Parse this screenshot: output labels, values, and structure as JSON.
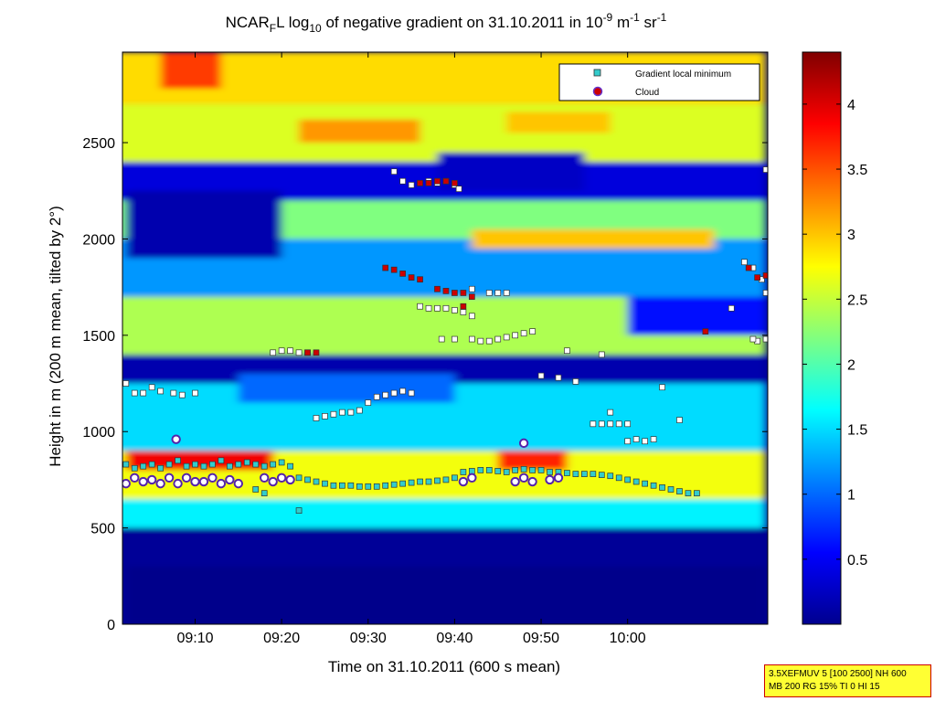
{
  "chart_data": {
    "type": "heatmap",
    "title_parts": {
      "a": "NCAR",
      "b": "F",
      "c": "L log",
      "d": "10",
      "e": " of negative gradient on 31.10.2011 in 10",
      "f": "-9",
      "g": " m",
      "h": "-1",
      "i": " sr",
      "j": "-1"
    },
    "xlabel": "Time on 31.10.2011 (600 s mean)",
    "ylabel": "Height in m (200 m mean, tilted by 2°)",
    "x_ticks": [
      "09:10",
      "09:20",
      "09:30",
      "09:40",
      "09:50",
      "10:00"
    ],
    "x_tick_minutes": [
      10,
      20,
      30,
      40,
      50,
      60
    ],
    "xlim_minutes": [
      1.6,
      76.2
    ],
    "xlim_label": [
      "09:01.6",
      "10:16.2"
    ],
    "y_ticks": [
      "0",
      "500",
      "1000",
      "1500",
      "2000",
      "2500"
    ],
    "y_tick_values": [
      0,
      500,
      1000,
      1500,
      2000,
      2500
    ],
    "ylim": [
      0,
      2970
    ],
    "colorbar": {
      "ticks": [
        "0.5",
        "1",
        "1.5",
        "2",
        "2.5",
        "3",
        "3.5",
        "4"
      ],
      "tick_values": [
        0.5,
        1,
        1.5,
        2,
        2.5,
        3,
        3.5,
        4
      ],
      "range": [
        0,
        4.4
      ],
      "colormap": "jet"
    },
    "legend": {
      "placement": "top-right",
      "entries": [
        {
          "label": "Gradient local minimum",
          "color": "#33cccc",
          "marker": "square"
        },
        {
          "label": "Cloud",
          "color": "#cc0000",
          "marker": "circle",
          "edge": "#5522aa"
        }
      ]
    },
    "field_bands": [
      {
        "min_from": 0,
        "min_to": 76,
        "h_from": 0,
        "h_to": 600,
        "level": 0.1
      },
      {
        "min_from": 0,
        "min_to": 76,
        "h_from": 500,
        "h_to": 650,
        "level": 1.6
      },
      {
        "min_from": 0,
        "min_to": 76,
        "h_from": 650,
        "h_to": 900,
        "level": 2.7
      },
      {
        "min_from": 0,
        "min_to": 76,
        "h_from": 900,
        "h_to": 1250,
        "level": 1.5
      },
      {
        "min_from": 0,
        "min_to": 76,
        "h_from": 1250,
        "h_to": 1400,
        "level": 0.2
      },
      {
        "min_from": 0,
        "min_to": 76,
        "h_from": 1400,
        "h_to": 1700,
        "level": 2.4
      },
      {
        "min_from": 0,
        "min_to": 76,
        "h_from": 1700,
        "h_to": 2000,
        "level": 1.2
      },
      {
        "min_from": 0,
        "min_to": 76,
        "h_from": 2000,
        "h_to": 2200,
        "level": 2.2
      },
      {
        "min_from": 0,
        "min_to": 76,
        "h_from": 2200,
        "h_to": 2400,
        "level": 0.4
      },
      {
        "min_from": 0,
        "min_to": 76,
        "h_from": 2400,
        "h_to": 2700,
        "level": 2.6
      },
      {
        "min_from": 0,
        "min_to": 76,
        "h_from": 2700,
        "h_to": 2970,
        "level": 2.9
      }
    ],
    "field_patches": [
      {
        "min_from": 6,
        "min_to": 13,
        "h_from": 2780,
        "h_to": 2970,
        "level": 3.6
      },
      {
        "min_from": 22,
        "min_to": 36,
        "h_from": 2500,
        "h_to": 2620,
        "level": 3.2
      },
      {
        "min_from": 46,
        "min_to": 58,
        "h_from": 2550,
        "h_to": 2660,
        "level": 3.0
      },
      {
        "min_from": 42,
        "min_to": 70,
        "h_from": 1950,
        "h_to": 2050,
        "level": 3.0
      },
      {
        "min_from": 15,
        "min_to": 40,
        "h_from": 1150,
        "h_to": 1300,
        "level": 1.0
      },
      {
        "min_from": 2,
        "min_to": 20,
        "h_from": 1900,
        "h_to": 2250,
        "level": 0.2
      },
      {
        "min_from": 38,
        "min_to": 55,
        "h_from": 2250,
        "h_to": 2450,
        "level": 0.3
      },
      {
        "min_from": 60,
        "min_to": 76,
        "h_from": 1500,
        "h_to": 1700,
        "level": 0.6
      },
      {
        "min_from": 2,
        "min_to": 19,
        "h_from": 800,
        "h_to": 900,
        "level": 3.9
      },
      {
        "min_from": 45,
        "min_to": 53,
        "h_from": 800,
        "h_to": 900,
        "level": 3.7
      },
      {
        "min_from": 2,
        "min_to": 76,
        "h_from": 0,
        "h_to": 300,
        "level": 0.05
      }
    ],
    "series": [
      {
        "name": "Gradient local minimum",
        "points": [
          [
            2,
            1250
          ],
          [
            3,
            1200
          ],
          [
            4,
            1200
          ],
          [
            5,
            1230
          ],
          [
            6,
            1210
          ],
          [
            7.5,
            1200
          ],
          [
            8.5,
            1190
          ],
          [
            10,
            1200
          ],
          [
            19,
            1410
          ],
          [
            20,
            1420
          ],
          [
            21,
            1420
          ],
          [
            22,
            1410
          ],
          [
            23,
            1410
          ],
          [
            24,
            1070
          ],
          [
            25,
            1080
          ],
          [
            26,
            1090
          ],
          [
            27,
            1100
          ],
          [
            28,
            1100
          ],
          [
            29,
            1110
          ],
          [
            30,
            1150
          ],
          [
            31,
            1180
          ],
          [
            32,
            1190
          ],
          [
            33,
            1200
          ],
          [
            34,
            1210
          ],
          [
            35,
            1200
          ],
          [
            33,
            2350
          ],
          [
            34,
            2300
          ],
          [
            35,
            2280
          ],
          [
            36,
            2290
          ],
          [
            37,
            2300
          ],
          [
            38,
            2290
          ],
          [
            39,
            2300
          ],
          [
            40,
            2280
          ],
          [
            40.5,
            2260
          ],
          [
            36,
            1650
          ],
          [
            37,
            1640
          ],
          [
            38,
            1640
          ],
          [
            39,
            1640
          ],
          [
            40,
            1630
          ],
          [
            41,
            1620
          ],
          [
            42,
            1600
          ],
          [
            38.5,
            1480
          ],
          [
            40,
            1480
          ],
          [
            42,
            1480
          ],
          [
            43,
            1470
          ],
          [
            44,
            1470
          ],
          [
            45,
            1480
          ],
          [
            46,
            1490
          ],
          [
            47,
            1500
          ],
          [
            48,
            1510
          ],
          [
            49,
            1520
          ],
          [
            42,
            1740
          ],
          [
            44,
            1720
          ],
          [
            45,
            1720
          ],
          [
            46,
            1720
          ],
          [
            50,
            1290
          ],
          [
            52,
            1280
          ],
          [
            53,
            1420
          ],
          [
            54,
            1260
          ],
          [
            57,
            1400
          ],
          [
            56,
            1040
          ],
          [
            57,
            1040
          ],
          [
            58,
            1040
          ],
          [
            59,
            1040
          ],
          [
            60,
            1040
          ],
          [
            58,
            1100
          ],
          [
            60,
            950
          ],
          [
            61,
            960
          ],
          [
            62,
            950
          ],
          [
            63,
            960
          ],
          [
            64,
            1230
          ],
          [
            66,
            1060
          ],
          [
            72,
            1640
          ],
          [
            73.5,
            1880
          ],
          [
            74.5,
            1850
          ],
          [
            75.5,
            1790
          ],
          [
            76,
            1720
          ],
          [
            76,
            1480
          ],
          [
            75,
            1470
          ],
          [
            74.5,
            1480
          ],
          [
            76,
            2360
          ],
          [
            2,
            830
          ],
          [
            3,
            810
          ],
          [
            4,
            820
          ],
          [
            5,
            830
          ],
          [
            6,
            810
          ],
          [
            7,
            830
          ],
          [
            8,
            850
          ],
          [
            9,
            820
          ],
          [
            10,
            830
          ],
          [
            11,
            820
          ],
          [
            12,
            830
          ],
          [
            13,
            850
          ],
          [
            14,
            820
          ],
          [
            15,
            830
          ],
          [
            16,
            840
          ],
          [
            17,
            830
          ],
          [
            18,
            820
          ],
          [
            19,
            830
          ],
          [
            20,
            840
          ],
          [
            21,
            820
          ],
          [
            22,
            760
          ],
          [
            23,
            750
          ],
          [
            24,
            740
          ],
          [
            25,
            730
          ],
          [
            26,
            720
          ],
          [
            27,
            720
          ],
          [
            28,
            720
          ],
          [
            29,
            715
          ],
          [
            30,
            715
          ],
          [
            31,
            715
          ],
          [
            32,
            720
          ],
          [
            33,
            725
          ],
          [
            34,
            730
          ],
          [
            35,
            735
          ],
          [
            36,
            740
          ],
          [
            37,
            740
          ],
          [
            38,
            745
          ],
          [
            39,
            750
          ],
          [
            40,
            760
          ],
          [
            41,
            790
          ],
          [
            42,
            795
          ],
          [
            43,
            800
          ],
          [
            44,
            800
          ],
          [
            45,
            795
          ],
          [
            46,
            790
          ],
          [
            47,
            800
          ],
          [
            48,
            805
          ],
          [
            49,
            800
          ],
          [
            50,
            800
          ],
          [
            51,
            790
          ],
          [
            52,
            790
          ],
          [
            53,
            785
          ],
          [
            54,
            780
          ],
          [
            55,
            780
          ],
          [
            56,
            780
          ],
          [
            57,
            775
          ],
          [
            58,
            770
          ],
          [
            59,
            760
          ],
          [
            60,
            750
          ],
          [
            61,
            740
          ],
          [
            62,
            730
          ],
          [
            63,
            720
          ],
          [
            64,
            710
          ],
          [
            65,
            700
          ],
          [
            66,
            690
          ],
          [
            67,
            680
          ],
          [
            68,
            680
          ],
          [
            22,
            590
          ],
          [
            17,
            700
          ],
          [
            18,
            680
          ]
        ]
      },
      {
        "name": "Cloud",
        "points": [
          [
            2,
            730
          ],
          [
            3,
            760
          ],
          [
            4,
            740
          ],
          [
            5,
            750
          ],
          [
            6,
            730
          ],
          [
            7,
            760
          ],
          [
            7.8,
            960
          ],
          [
            8,
            730
          ],
          [
            9,
            760
          ],
          [
            10,
            740
          ],
          [
            11,
            740
          ],
          [
            12,
            760
          ],
          [
            13,
            730
          ],
          [
            14,
            750
          ],
          [
            15,
            730
          ],
          [
            18,
            760
          ],
          [
            19,
            740
          ],
          [
            20,
            760
          ],
          [
            21,
            750
          ],
          [
            41,
            740
          ],
          [
            42,
            760
          ],
          [
            32,
            1850
          ],
          [
            33,
            1840
          ],
          [
            34,
            1820
          ],
          [
            35,
            1800
          ],
          [
            36,
            1790
          ],
          [
            38,
            1740
          ],
          [
            39,
            1730
          ],
          [
            40,
            1720
          ],
          [
            41,
            1720
          ],
          [
            42,
            1700
          ],
          [
            36,
            2290
          ],
          [
            37,
            2290
          ],
          [
            38,
            2300
          ],
          [
            39,
            2300
          ],
          [
            40,
            2290
          ],
          [
            23,
            1410
          ],
          [
            24,
            1410
          ],
          [
            41,
            1650
          ],
          [
            47,
            740
          ],
          [
            48,
            760
          ],
          [
            49,
            740
          ],
          [
            51,
            750
          ],
          [
            52,
            760
          ],
          [
            48,
            940
          ],
          [
            69,
            1520
          ],
          [
            74,
            1850
          ],
          [
            75,
            1800
          ],
          [
            76,
            1810
          ]
        ]
      }
    ]
  },
  "info_box": {
    "line1": "3.5XEFMUV 5 [100 2500] NH 600",
    "line2": "MB 200 RG 15% TI 0 HI 15"
  }
}
